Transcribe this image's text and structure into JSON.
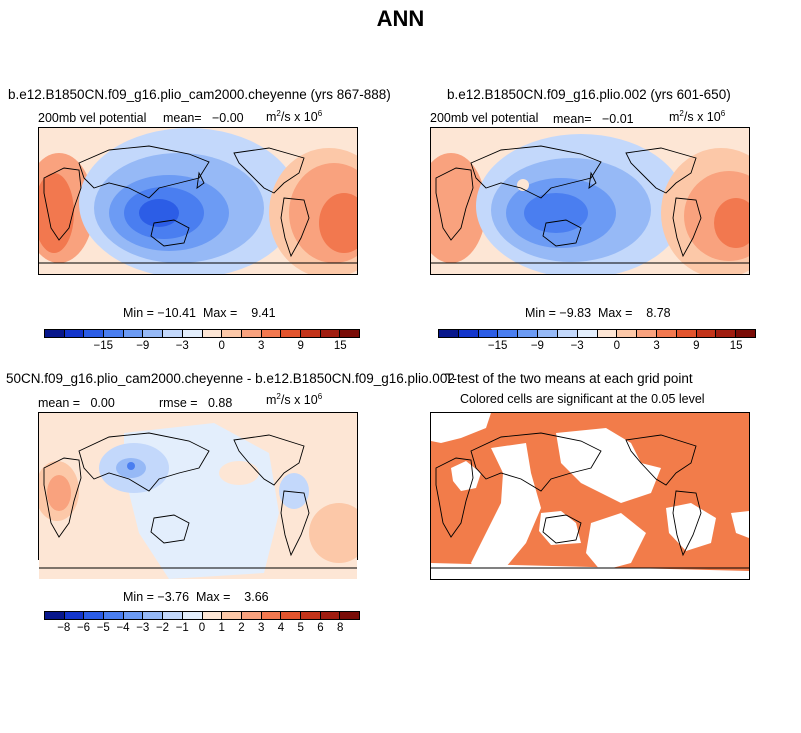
{
  "page_title": "ANN",
  "panels": [
    {
      "title": "b.e12.B1850CN.f09_g16.plio_cam2000.cheyenne (yrs 867-888)",
      "left_label": "200mb vel potential",
      "mean_label": "mean=",
      "mean_value": "−0.00",
      "units_base": "m",
      "units_sup": "2",
      "units_mid": "/s x 10",
      "units_exp": "6",
      "min_label": "Min = ",
      "min_value": "−10.41",
      "max_label": "Max = ",
      "max_value": "9.41",
      "colorbar": {
        "colors": [
          "#08178c",
          "#1436cc",
          "#2c5de6",
          "#4a7ef0",
          "#6c9bf4",
          "#96b9f6",
          "#c3d8fb",
          "#e3eefc",
          "#fde6d5",
          "#fcc8a8",
          "#f9a27e",
          "#f2784f",
          "#e2542d",
          "#c3341a",
          "#a01d10",
          "#7a0c07"
        ],
        "ticks": [
          "−15",
          "−9",
          "−3",
          "0",
          "3",
          "9",
          "15"
        ]
      }
    },
    {
      "title": "b.e12.B1850CN.f09_g16.plio.002 (yrs 601-650)",
      "left_label": "200mb vel potential",
      "mean_label": "mean=",
      "mean_value": "−0.01",
      "units_base": "m",
      "units_sup": "2",
      "units_mid": "/s x 10",
      "units_exp": "6",
      "min_label": "Min = ",
      "min_value": "−9.83",
      "max_label": "Max = ",
      "max_value": "8.78",
      "colorbar": {
        "colors": [
          "#08178c",
          "#1436cc",
          "#2c5de6",
          "#4a7ef0",
          "#6c9bf4",
          "#96b9f6",
          "#c3d8fb",
          "#e3eefc",
          "#fde6d5",
          "#fcc8a8",
          "#f9a27e",
          "#f2784f",
          "#e2542d",
          "#c3341a",
          "#a01d10",
          "#7a0c07"
        ],
        "ticks": [
          "−15",
          "−9",
          "−3",
          "0",
          "3",
          "9",
          "15"
        ]
      }
    },
    {
      "title": "50CN.f09_g16.plio_cam2000.cheyenne - b.e12.B1850CN.f09_g16.plio.002",
      "mean_label": "mean =",
      "mean_value": "0.00",
      "rmse_label": "rmse =",
      "rmse_value": "0.88",
      "units_base": "m",
      "units_sup": "2",
      "units_mid": "/s x 10",
      "units_exp": "6",
      "min_label": "Min = ",
      "min_value": "−3.76",
      "max_label": "Max = ",
      "max_value": "3.66",
      "colorbar": {
        "colors": [
          "#08178c",
          "#1436cc",
          "#2c5de6",
          "#4a7ef0",
          "#6c9bf4",
          "#96b9f6",
          "#c3d8fb",
          "#e3eefc",
          "#fde6d5",
          "#fcc8a8",
          "#f9a27e",
          "#f2784f",
          "#e2542d",
          "#c3341a",
          "#a01d10",
          "#7a0c07"
        ],
        "ticks": [
          "−8",
          "−6",
          "−5",
          "−4",
          "−3",
          "−2",
          "−1",
          "0",
          "1",
          "2",
          "3",
          "4",
          "5",
          "6",
          "8"
        ]
      }
    },
    {
      "title": "T-test of the two means at each grid point",
      "subtitle": "Colored cells are significant at the 0.05 level",
      "significant_color": "#f27c4a"
    }
  ]
}
